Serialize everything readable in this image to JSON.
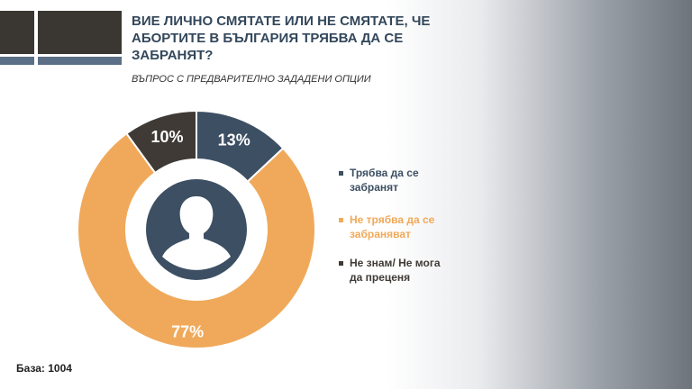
{
  "chart_data": {
    "type": "pie",
    "title": "ВИЕ ЛИЧНО СМЯТАТЕ ИЛИ НЕ СМЯТАТЕ, ЧЕ АБОРТИТЕ В БЪЛГАРИЯ ТРЯБВА ДА СЕ ЗАБРАНЯТ?",
    "subtitle": "ВЪПРОС С ПРЕДВАРИТЕЛНО ЗАДАДЕНИ ОПЦИИ",
    "categories": [
      "Трябва да се забранят",
      "Не трябва да се забраняват",
      "Не знам/ Не мога да преценя"
    ],
    "values": [
      13,
      77,
      10
    ],
    "value_labels": [
      "13%",
      "77%",
      "10%"
    ],
    "colors": [
      "#3d4f63",
      "#f0a95a",
      "#3f3a35"
    ],
    "footnote": "База: 1004"
  }
}
